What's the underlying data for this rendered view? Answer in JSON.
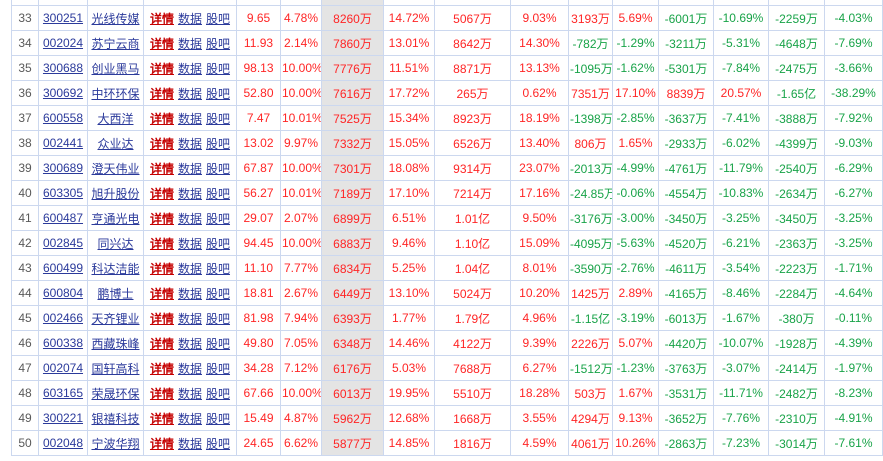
{
  "table": {
    "link_labels": {
      "detail": "详情",
      "data": "数据",
      "guba": "股吧"
    },
    "colors": {
      "up_red": "#ff2525",
      "down_green": "#18a348",
      "link_navy": "#2b3a9b",
      "detail_link_red": "#c50000",
      "grid_border": "#ccd8ef",
      "sorted_column_bg": "#e4e4e4",
      "row_index_gray": "#595959"
    },
    "rows": [
      {
        "index": "33",
        "code": "300251",
        "name": "光线传媒",
        "price": "9.65",
        "change_pct": "4.78%",
        "main_net": "8260万",
        "main_pct": "14.72%",
        "xl_net": "5067万",
        "xl_pct": "9.03%",
        "lg_net": "3193万",
        "lg_pct": "5.69%",
        "md_net": "-6001万",
        "md_pct": "-10.69%",
        "sm_net": "-2259万",
        "sm_pct": "-4.03%"
      },
      {
        "index": "34",
        "code": "002024",
        "name": "苏宁云商",
        "price": "11.93",
        "change_pct": "2.14%",
        "main_net": "7860万",
        "main_pct": "13.01%",
        "xl_net": "8642万",
        "xl_pct": "14.30%",
        "lg_net": "-782万",
        "lg_pct": "-1.29%",
        "md_net": "-3211万",
        "md_pct": "-5.31%",
        "sm_net": "-4648万",
        "sm_pct": "-7.69%"
      },
      {
        "index": "35",
        "code": "300688",
        "name": "创业黑马",
        "price": "98.13",
        "change_pct": "10.00%",
        "main_net": "7776万",
        "main_pct": "11.51%",
        "xl_net": "8871万",
        "xl_pct": "13.13%",
        "lg_net": "-1095万",
        "lg_pct": "-1.62%",
        "md_net": "-5301万",
        "md_pct": "-7.84%",
        "sm_net": "-2475万",
        "sm_pct": "-3.66%"
      },
      {
        "index": "36",
        "code": "300692",
        "name": "中环环保",
        "price": "52.80",
        "change_pct": "10.00%",
        "main_net": "7616万",
        "main_pct": "17.72%",
        "xl_net": "265万",
        "xl_pct": "0.62%",
        "lg_net": "7351万",
        "lg_pct": "17.10%",
        "md_net": "8839万",
        "md_pct": "20.57%",
        "sm_net": "-1.65亿",
        "sm_pct": "-38.29%"
      },
      {
        "index": "37",
        "code": "600558",
        "name": "大西洋",
        "price": "7.47",
        "change_pct": "10.01%",
        "main_net": "7525万",
        "main_pct": "15.34%",
        "xl_net": "8923万",
        "xl_pct": "18.19%",
        "lg_net": "-1398万",
        "lg_pct": "-2.85%",
        "md_net": "-3637万",
        "md_pct": "-7.41%",
        "sm_net": "-3888万",
        "sm_pct": "-7.92%"
      },
      {
        "index": "38",
        "code": "002441",
        "name": "众业达",
        "price": "13.02",
        "change_pct": "9.97%",
        "main_net": "7332万",
        "main_pct": "15.05%",
        "xl_net": "6526万",
        "xl_pct": "13.40%",
        "lg_net": "806万",
        "lg_pct": "1.65%",
        "md_net": "-2933万",
        "md_pct": "-6.02%",
        "sm_net": "-4399万",
        "sm_pct": "-9.03%"
      },
      {
        "index": "39",
        "code": "300689",
        "name": "澄天伟业",
        "price": "67.87",
        "change_pct": "10.00%",
        "main_net": "7301万",
        "main_pct": "18.08%",
        "xl_net": "9314万",
        "xl_pct": "23.07%",
        "lg_net": "-2013万",
        "lg_pct": "-4.99%",
        "md_net": "-4761万",
        "md_pct": "-11.79%",
        "sm_net": "-2540万",
        "sm_pct": "-6.29%"
      },
      {
        "index": "40",
        "code": "603305",
        "name": "旭升股份",
        "price": "56.27",
        "change_pct": "10.01%",
        "main_net": "7189万",
        "main_pct": "17.10%",
        "xl_net": "7214万",
        "xl_pct": "17.16%",
        "lg_net": "-24.85万",
        "lg_pct": "-0.06%",
        "md_net": "-4554万",
        "md_pct": "-10.83%",
        "sm_net": "-2634万",
        "sm_pct": "-6.27%"
      },
      {
        "index": "41",
        "code": "600487",
        "name": "亨通光电",
        "price": "29.07",
        "change_pct": "2.07%",
        "main_net": "6899万",
        "main_pct": "6.51%",
        "xl_net": "1.01亿",
        "xl_pct": "9.50%",
        "lg_net": "-3176万",
        "lg_pct": "-3.00%",
        "md_net": "-3450万",
        "md_pct": "-3.25%",
        "sm_net": "-3450万",
        "sm_pct": "-3.25%"
      },
      {
        "index": "42",
        "code": "002845",
        "name": "同兴达",
        "price": "94.45",
        "change_pct": "10.00%",
        "main_net": "6883万",
        "main_pct": "9.46%",
        "xl_net": "1.10亿",
        "xl_pct": "15.09%",
        "lg_net": "-4095万",
        "lg_pct": "-5.63%",
        "md_net": "-4520万",
        "md_pct": "-6.21%",
        "sm_net": "-2363万",
        "sm_pct": "-3.25%"
      },
      {
        "index": "43",
        "code": "600499",
        "name": "科达洁能",
        "price": "11.10",
        "change_pct": "7.77%",
        "main_net": "6834万",
        "main_pct": "5.25%",
        "xl_net": "1.04亿",
        "xl_pct": "8.01%",
        "lg_net": "-3590万",
        "lg_pct": "-2.76%",
        "md_net": "-4611万",
        "md_pct": "-3.54%",
        "sm_net": "-2223万",
        "sm_pct": "-1.71%"
      },
      {
        "index": "44",
        "code": "600804",
        "name": "鹏博士",
        "price": "18.81",
        "change_pct": "2.67%",
        "main_net": "6449万",
        "main_pct": "13.10%",
        "xl_net": "5024万",
        "xl_pct": "10.20%",
        "lg_net": "1425万",
        "lg_pct": "2.89%",
        "md_net": "-4165万",
        "md_pct": "-8.46%",
        "sm_net": "-2284万",
        "sm_pct": "-4.64%"
      },
      {
        "index": "45",
        "code": "002466",
        "name": "天齐锂业",
        "price": "81.98",
        "change_pct": "7.94%",
        "main_net": "6393万",
        "main_pct": "1.77%",
        "xl_net": "1.79亿",
        "xl_pct": "4.96%",
        "lg_net": "-1.15亿",
        "lg_pct": "-3.19%",
        "md_net": "-6013万",
        "md_pct": "-1.67%",
        "sm_net": "-380万",
        "sm_pct": "-0.11%"
      },
      {
        "index": "46",
        "code": "600338",
        "name": "西藏珠峰",
        "price": "49.80",
        "change_pct": "7.05%",
        "main_net": "6348万",
        "main_pct": "14.46%",
        "xl_net": "4122万",
        "xl_pct": "9.39%",
        "lg_net": "2226万",
        "lg_pct": "5.07%",
        "md_net": "-4420万",
        "md_pct": "-10.07%",
        "sm_net": "-1928万",
        "sm_pct": "-4.39%"
      },
      {
        "index": "47",
        "code": "002074",
        "name": "国轩高科",
        "price": "34.28",
        "change_pct": "7.12%",
        "main_net": "6176万",
        "main_pct": "5.03%",
        "xl_net": "7688万",
        "xl_pct": "6.27%",
        "lg_net": "-1512万",
        "lg_pct": "-1.23%",
        "md_net": "-3763万",
        "md_pct": "-3.07%",
        "sm_net": "-2414万",
        "sm_pct": "-1.97%"
      },
      {
        "index": "48",
        "code": "603165",
        "name": "荣晟环保",
        "price": "67.66",
        "change_pct": "10.00%",
        "main_net": "6013万",
        "main_pct": "19.95%",
        "xl_net": "5510万",
        "xl_pct": "18.28%",
        "lg_net": "503万",
        "lg_pct": "1.67%",
        "md_net": "-3531万",
        "md_pct": "-11.71%",
        "sm_net": "-2482万",
        "sm_pct": "-8.23%"
      },
      {
        "index": "49",
        "code": "300221",
        "name": "银禧科技",
        "price": "15.49",
        "change_pct": "4.87%",
        "main_net": "5962万",
        "main_pct": "12.68%",
        "xl_net": "1668万",
        "xl_pct": "3.55%",
        "lg_net": "4294万",
        "lg_pct": "9.13%",
        "md_net": "-3652万",
        "md_pct": "-7.76%",
        "sm_net": "-2310万",
        "sm_pct": "-4.91%"
      },
      {
        "index": "50",
        "code": "002048",
        "name": "宁波华翔",
        "price": "24.65",
        "change_pct": "6.62%",
        "main_net": "5877万",
        "main_pct": "14.85%",
        "xl_net": "1816万",
        "xl_pct": "4.59%",
        "lg_net": "4061万",
        "lg_pct": "10.26%",
        "md_net": "-2863万",
        "md_pct": "-7.23%",
        "sm_net": "-3014万",
        "sm_pct": "-7.61%"
      }
    ]
  }
}
